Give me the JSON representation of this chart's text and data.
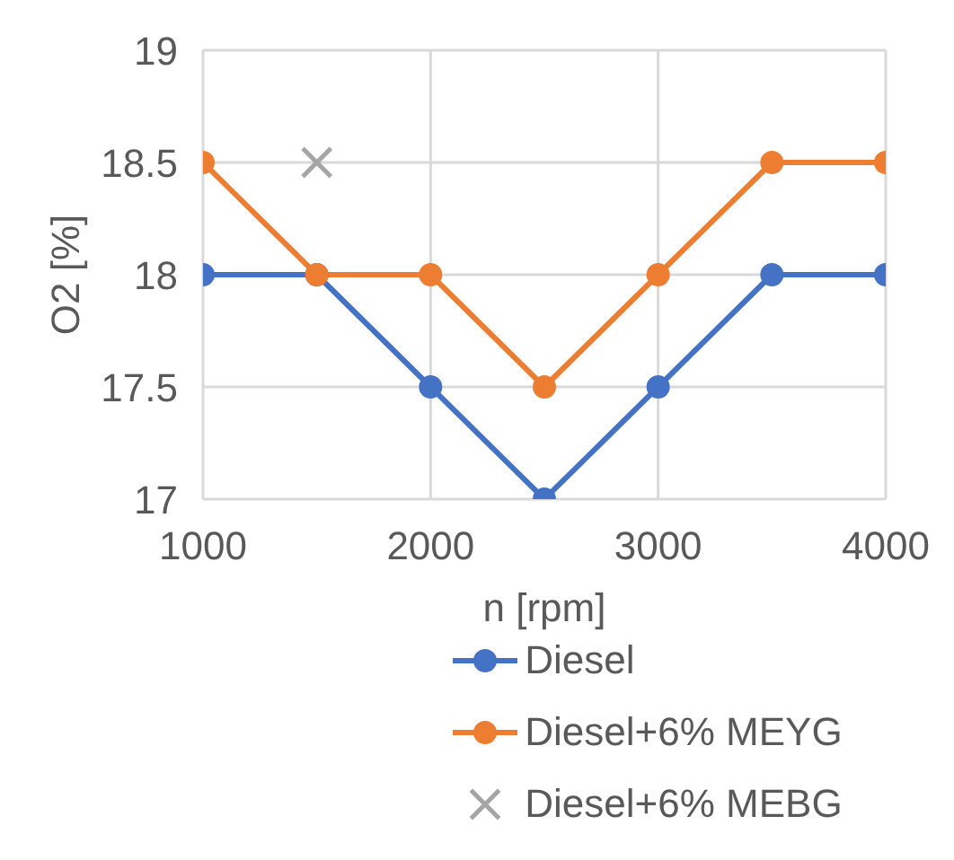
{
  "chart_data": {
    "type": "line",
    "xlabel": "n [rpm]",
    "ylabel": "O2 [%]",
    "x": [
      1000,
      1500,
      2000,
      2500,
      3000,
      3500,
      4000
    ],
    "series": [
      {
        "name": "Diesel",
        "color": "#4472c4",
        "marker": "circle",
        "values": [
          18,
          18,
          17.5,
          17,
          17.5,
          18,
          18
        ]
      },
      {
        "name": "Diesel+6% MEYG",
        "color": "#ed7d31",
        "marker": "circle",
        "values": [
          18.5,
          18,
          18,
          17.5,
          18,
          18.5,
          18.5
        ]
      },
      {
        "name": "Diesel+6% MEBG",
        "type": "scatter",
        "color": "#a5a5a5",
        "marker": "cross",
        "x": [
          1500
        ],
        "values": [
          18.5
        ]
      }
    ],
    "xlim": [
      1000,
      4000
    ],
    "xticks": [
      1000,
      2000,
      3000,
      4000
    ],
    "ylim": [
      17,
      19
    ],
    "yticks": [
      17,
      17.5,
      18,
      18.5,
      19
    ],
    "grid": true,
    "legend": "bottom"
  }
}
